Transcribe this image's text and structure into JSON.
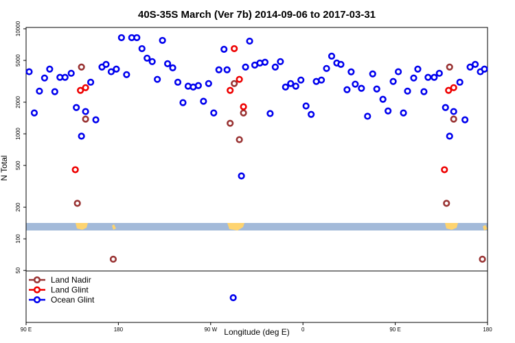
{
  "chart_data": {
    "type": "scatter",
    "title": "40S-35S March (Ver 7b)   2014-09-06 to 2017-03-31",
    "x_label": "Longitude (deg E)",
    "y_label": "N Total",
    "y_scale": "log",
    "legend_position": "lower left",
    "xlim": [
      90,
      540
    ],
    "xticks": [
      {
        "value": 90,
        "label": "90 E"
      },
      {
        "value": 180,
        "label": "180"
      },
      {
        "value": 270,
        "label": "90 W"
      },
      {
        "value": 360,
        "label": "0"
      },
      {
        "value": 450,
        "label": "90 E"
      },
      {
        "value": 540,
        "label": "180"
      }
    ],
    "ylim": [
      16,
      10300
    ],
    "yticks": [
      50,
      100,
      200,
      500,
      1000,
      2000,
      5000,
      10000
    ],
    "series": [
      {
        "name": "Land Nadir",
        "color": "#993333",
        "x": [
          140,
          144,
          148,
          175,
          289,
          293,
          298,
          302,
          500,
          503,
          507,
          535
        ],
        "values": [
          218,
          4320,
          1380,
          64,
          1260,
          3010,
          880,
          1580,
          218,
          4320,
          1380,
          64
        ]
      },
      {
        "name": "Land Glint",
        "color": "#ee0000",
        "x": [
          138,
          143,
          148,
          289,
          293,
          298,
          302,
          498,
          502,
          507
        ],
        "values": [
          455,
          2590,
          2750,
          2590,
          6470,
          3300,
          1810,
          455,
          2590,
          2750
        ]
      },
      {
        "name": "Ocean Glint",
        "color": "#0000ee",
        "x": [
          93,
          98,
          103,
          108,
          113,
          118,
          123,
          128,
          134,
          139,
          144,
          148,
          153,
          158,
          164,
          168,
          173,
          178,
          183,
          188,
          193,
          198,
          203,
          208,
          213,
          218,
          223,
          228,
          233,
          238,
          243,
          248,
          253,
          258,
          263,
          268,
          273,
          278,
          283,
          286,
          292,
          300,
          304,
          308,
          313,
          318,
          323,
          328,
          333,
          338,
          343,
          348,
          353,
          358,
          363,
          368,
          373,
          378,
          383,
          388,
          393,
          397,
          403,
          407,
          411,
          417,
          423,
          428,
          432,
          438,
          443,
          448,
          453,
          458,
          462,
          468,
          472,
          478,
          482,
          488,
          493,
          499,
          503,
          507,
          513,
          518,
          523,
          528,
          533,
          537
        ],
        "values": [
          3900,
          1580,
          2550,
          3400,
          4130,
          2520,
          3450,
          3450,
          3770,
          1780,
          950,
          1630,
          3100,
          1360,
          4320,
          4580,
          3900,
          4130,
          8230,
          3660,
          8230,
          8230,
          6470,
          5250,
          4870,
          3300,
          7750,
          4650,
          4250,
          3100,
          1980,
          2840,
          2790,
          2880,
          2040,
          3010,
          1580,
          4070,
          6380,
          4070,
          27.5,
          397,
          4320,
          7630,
          4510,
          4720,
          4800,
          1560,
          4320,
          4870,
          2790,
          3010,
          2840,
          3250,
          1840,
          1530,
          3150,
          3250,
          4190,
          5490,
          4720,
          4580,
          2630,
          3890,
          2970,
          2710,
          1470,
          3720,
          2670,
          2130,
          1650,
          3150,
          3900,
          1580,
          2550,
          3400,
          4130,
          2520,
          3450,
          3450,
          3770,
          1780,
          950,
          1630,
          3100,
          1360,
          4320,
          4580,
          3900,
          4130
        ]
      }
    ]
  }
}
